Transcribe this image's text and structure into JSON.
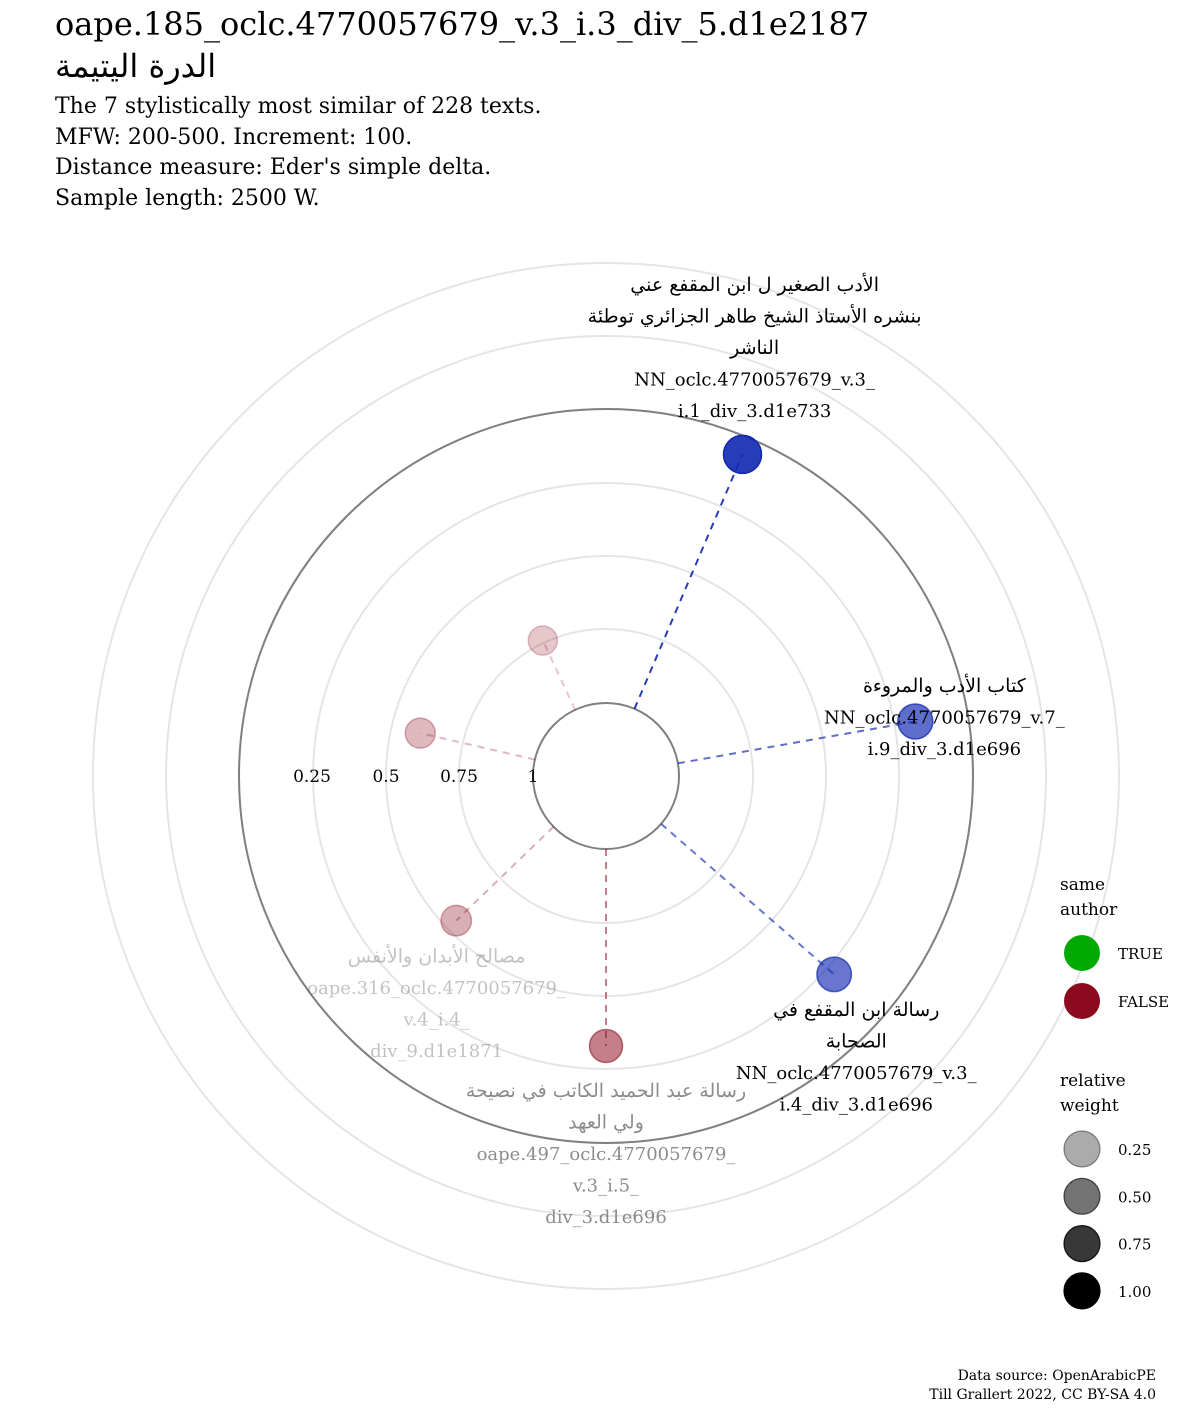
{
  "header": {
    "title": "oape.185_oclc.4770057679_v.3_i.3_div_5.d1e2187",
    "title_ar": "الدرة اليتيمة",
    "subtitle_lines": [
      "The 7 stylistically most similar of 228 texts.",
      "MFW: 200-500. Increment: 100.",
      "Distance measure: Eder's simple delta.",
      "Sample length: 2500 W."
    ]
  },
  "chart_data": {
    "type": "scatter",
    "coordinate_system": "polar",
    "radial_axis_labels": [
      "0.25",
      "0.5",
      "0.75",
      "1"
    ],
    "series": [
      {
        "label_ar": [
          "الأدب الصغير ل ابن المقفع عني",
          "بنشره الأستاذ الشيخ طاهر الجزائري توطئة",
          "الناشر"
        ],
        "label_id": [
          "NN_oclc.4770057679_v.3_",
          "i.1_div_3.d1e733"
        ],
        "same_author": true,
        "relative_weight": 1.0,
        "angle_deg": 23,
        "radius": 0.94
      },
      {
        "label_ar": [
          "كتاب الأدب والمروءة"
        ],
        "label_id": [
          "NN_oclc.4770057679_v.7_",
          "i.9_div_3.d1e696"
        ],
        "same_author": true,
        "relative_weight": 0.7,
        "angle_deg": 80,
        "radius": 0.82
      },
      {
        "label_ar": [
          "رسالة ابن المقفع في",
          "الصحابة"
        ],
        "label_id": [
          "NN_oclc.4770057679_v.3_",
          "i.4_div_3.d1e696"
        ],
        "same_author": true,
        "relative_weight": 0.65,
        "angle_deg": 131,
        "radius": 0.78
      },
      {
        "label_ar": [
          "رسالة عبد الحميد الكاتب في نصيحة",
          "ولي العهد"
        ],
        "label_id": [
          "oape.497_oclc.4770057679_",
          "v.3_i.5_",
          "div_3.d1e696"
        ],
        "same_author": false,
        "relative_weight": 0.5,
        "angle_deg": 180,
        "radius": 0.67
      },
      {
        "label_ar": [
          "مصالح الأبدان والأنفس"
        ],
        "label_id": [
          "oape.316_oclc.4770057679_",
          "v.4_i.4_",
          "div_9.d1e1871"
        ],
        "same_author": false,
        "relative_weight": 0.25,
        "angle_deg": 226,
        "radius": 0.46
      },
      {
        "label_ar": [],
        "label_id": [],
        "same_author": false,
        "relative_weight": 0.2,
        "angle_deg": 283,
        "radius": 0.4
      },
      {
        "label_ar": [],
        "label_id": [],
        "same_author": false,
        "relative_weight": 0.12,
        "angle_deg": 335,
        "radius": 0.26
      }
    ],
    "legend": {
      "same_author_title": "same\nauthor",
      "same_author_items": [
        {
          "label": "TRUE",
          "color": "#00aa00"
        },
        {
          "label": "FALSE",
          "color": "#8b0a1e"
        }
      ],
      "weight_title": "relative\nweight",
      "weight_items": [
        {
          "label": "0.25",
          "alpha": 0.33
        },
        {
          "label": "0.50",
          "alpha": 0.55
        },
        {
          "label": "0.75",
          "alpha": 0.78
        },
        {
          "label": "1.00",
          "alpha": 1.0
        }
      ]
    },
    "colors": {
      "same_author_point": "#1027b0",
      "other_author_point": "#8b0a1e"
    }
  },
  "captions": {
    "source": "Data source: OpenArabicPE",
    "credit": "Till Grallert 2022, CC BY-SA 4.0"
  }
}
